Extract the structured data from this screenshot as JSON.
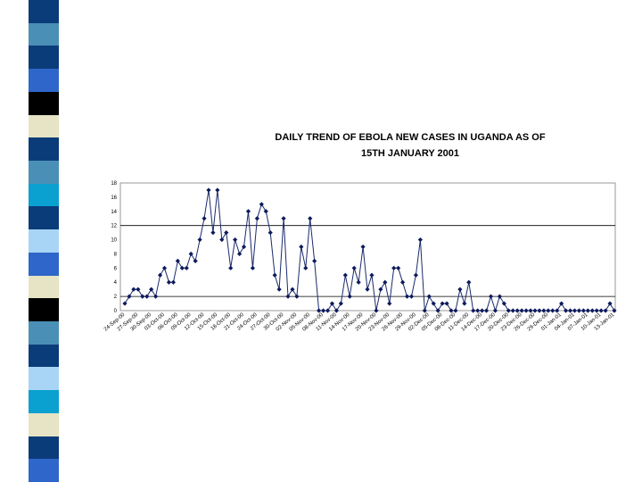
{
  "colors": {
    "line": "#1a2a6b",
    "marker": "#0d1a5c",
    "stripe": [
      "#0b3c7a",
      "#4a8fb5",
      "#0b3c7a",
      "#2f66c9",
      "#000000",
      "#e6e4c4",
      "#0b3c7a",
      "#4a8fb5",
      "#0aa0d0",
      "#0b3c7a",
      "#a8d4f5",
      "#2f66c9",
      "#e6e4c4",
      "#000000",
      "#4a8fb5",
      "#0b3c7a",
      "#a8d4f5",
      "#0aa0d0",
      "#e6e4c4",
      "#0b3c7a",
      "#2f66c9"
    ]
  },
  "chart_data": {
    "type": "line",
    "title": "DAILY TREND OF EBOLA NEW CASES IN UGANDA AS OF\n15TH JANUARY 2001",
    "xlabel": "",
    "ylabel": "",
    "ylim": [
      0,
      18
    ],
    "yticks": [
      0,
      2,
      4,
      6,
      8,
      10,
      12,
      14,
      16,
      18
    ],
    "grid_lines_y": [
      2,
      12
    ],
    "x_tick_labels": [
      "24-Sep-00",
      "27-Sep-00",
      "30-Sep-00",
      "03-Oct-00",
      "06-Oct-00",
      "09-Oct-00",
      "12-Oct-00",
      "15-Oct-00",
      "18-Oct-00",
      "21-Oct-00",
      "24-Oct-00",
      "27-Oct-00",
      "30-Oct-00",
      "02-Nov-00",
      "05-Nov-00",
      "08-Nov-00",
      "11-Nov-00",
      "14-Nov-00",
      "17-Nov-00",
      "20-Nov-00",
      "23-Nov-00",
      "26-Nov-00",
      "29-Nov-00",
      "02-Dec-00",
      "05-Dec-00",
      "08-Dec-00",
      "11-Dec-00",
      "14-Dec-00",
      "17-Dec-00",
      "20-Dec-00",
      "23-Dec-00",
      "26-Dec-00",
      "29-Dec-00",
      "01-Jan-01",
      "04-Jan-01",
      "07-Jan-01",
      "10-Jan-01",
      "13-Jan-01"
    ],
    "series": [
      {
        "values": [
          1,
          2,
          3,
          3,
          2,
          2,
          3,
          2,
          5,
          6,
          4,
          4,
          7,
          6,
          6,
          8,
          7,
          10,
          13,
          17,
          11,
          17,
          10,
          11,
          6,
          10,
          8,
          9,
          14,
          6,
          13,
          15,
          14,
          11,
          5,
          3,
          13,
          2,
          3,
          2,
          9,
          6,
          13,
          7,
          0,
          0,
          0,
          1,
          0,
          1,
          5,
          2,
          6,
          4,
          9,
          3,
          5,
          0,
          3,
          4,
          1,
          6,
          6,
          4,
          2,
          2,
          5,
          10,
          0,
          2,
          1,
          0,
          1,
          1,
          0,
          0,
          3,
          1,
          4,
          0,
          0,
          0,
          0,
          2,
          0,
          2,
          1,
          0,
          0,
          0,
          0,
          0,
          0,
          0,
          0,
          0,
          0,
          0,
          0,
          1,
          0,
          0,
          0,
          0,
          0,
          0,
          0,
          0,
          0,
          0,
          1,
          0
        ]
      }
    ]
  }
}
